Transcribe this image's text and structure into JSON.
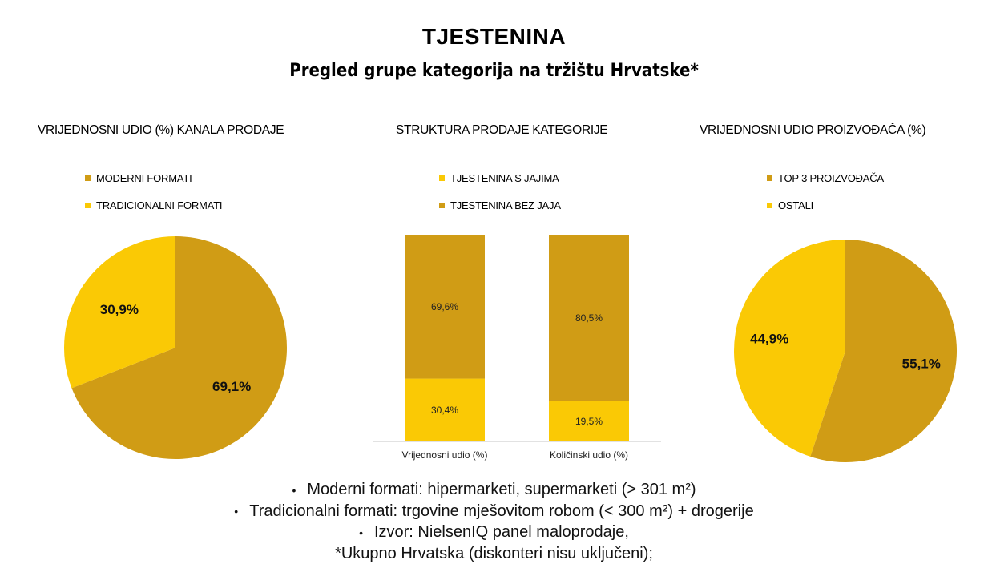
{
  "title": "TJESTENINA",
  "subtitle": "Pregled grupe kategorija na tržištu Hrvatske*",
  "colors": {
    "dark_gold": "#D09C15",
    "yellow": "#FAC905",
    "axis": "#E2E2E2"
  },
  "panels": {
    "channel": {
      "title": "VRIJEDNOSNI UDIO (%) KANALA PRODAJE"
    },
    "structure": {
      "title": "STRUKTURA PRODAJE KATEGORIJE"
    },
    "producer": {
      "title": "VRIJEDNOSNI UDIO PROIZVOĐAČA (%)"
    }
  },
  "chart_data": [
    {
      "type": "pie",
      "title": "VRIJEDNOSNI UDIO (%) KANALA PRODAJE",
      "legend_position": "top",
      "slices": [
        {
          "label": "MODERNI FORMATI",
          "value": 69.1,
          "value_label": "69,1%",
          "color": "#D09C15"
        },
        {
          "label": "TRADICIONALNI FORMATI",
          "value": 30.9,
          "value_label": "30,9%",
          "color": "#FAC905"
        }
      ]
    },
    {
      "type": "bar",
      "stacked": true,
      "title": "STRUKTURA PRODAJE KATEGORIJE",
      "legend_position": "top",
      "legend": [
        "TJESTENINA S JAJIMA",
        "TJESTENINA BEZ JAJA"
      ],
      "categories": [
        "Vrijednosni udio (%)",
        "Količinski udio (%)"
      ],
      "ylim": [
        0,
        100
      ],
      "series": [
        {
          "name": "TJESTENINA S JAJIMA",
          "values": [
            30.4,
            19.5
          ],
          "value_labels": [
            "30,4%",
            "19,5%"
          ],
          "color": "#FAC905"
        },
        {
          "name": "TJESTENINA BEZ JAJA",
          "values": [
            69.6,
            80.5
          ],
          "value_labels": [
            "69,6%",
            "80,5%"
          ],
          "color": "#D09C15"
        }
      ]
    },
    {
      "type": "pie",
      "title": "VRIJEDNOSNI UDIO PROIZVOĐAČA (%)",
      "legend_position": "top",
      "slices": [
        {
          "label": "TOP 3 PROIZVOĐAČA",
          "value": 55.1,
          "value_label": "55,1%",
          "color": "#D09C15"
        },
        {
          "label": "OSTALI",
          "value": 44.9,
          "value_label": "44,9%",
          "color": "#FAC905"
        }
      ]
    }
  ],
  "notes": [
    "Moderni formati: hipermarketi, supermarketi (> 301 m²)",
    "Tradicionalni formati: trgovine mješovitom robom (< 300 m²) + drogerije",
    "Izvor: NielsenIQ panel maloprodaje,",
    "*Ukupno Hrvatska (diskonteri nisu uključeni);"
  ]
}
